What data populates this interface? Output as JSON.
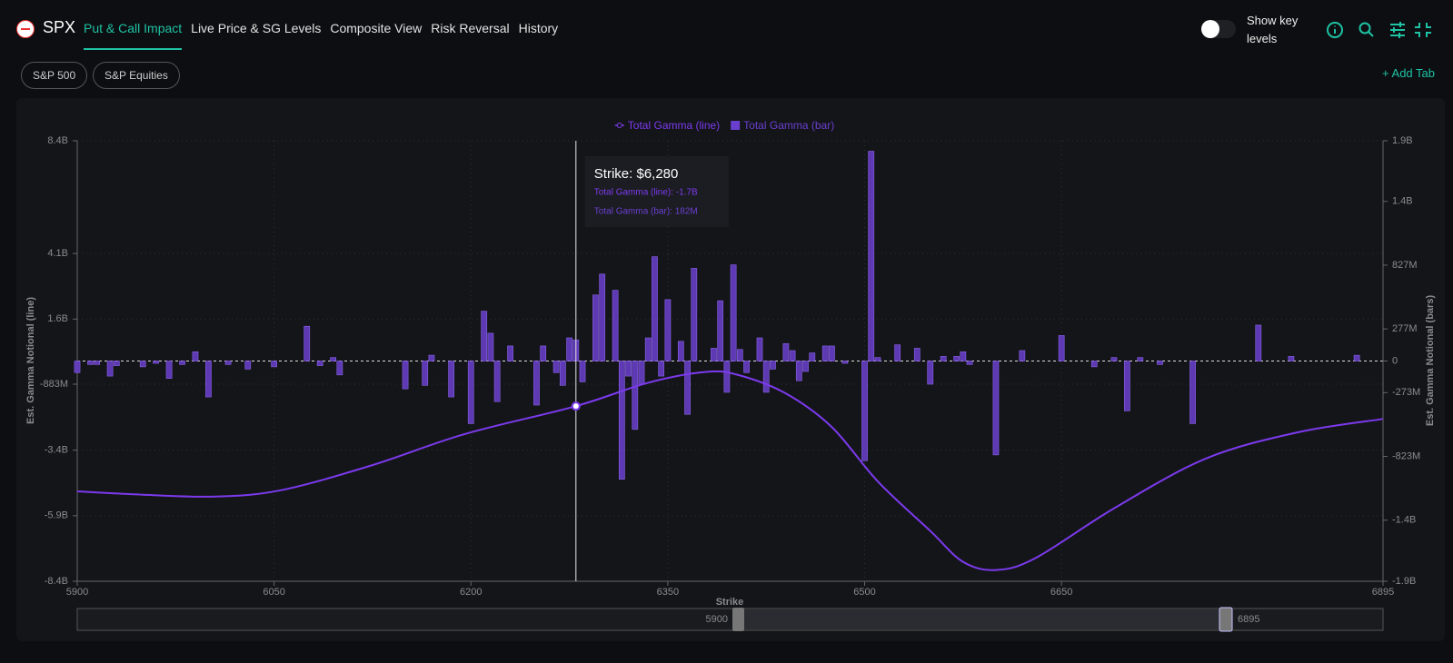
{
  "header": {
    "symbol": "SPX",
    "tabs": [
      "Put & Call Impact",
      "Live Price & SG Levels",
      "Composite View",
      "Risk Reversal",
      "History"
    ],
    "toggle_label": "Show key levels",
    "subtabs": [
      "S&P 500",
      "S&P Equities"
    ],
    "add_tab": "+ Add Tab"
  },
  "chart_data": {
    "type": "combo",
    "x_label": "Strike",
    "y_label": "Est. Gamma Notional (line)",
    "y2_label": "Est. Gamma Notional (bars)",
    "xlim": [
      5900,
      6895
    ],
    "xticks": [
      5900,
      6050,
      6200,
      6350,
      6500,
      6650,
      6895
    ],
    "ylim": [
      -8.4,
      8.4
    ],
    "yticks": [
      {
        "value": 8.4,
        "label": "8.4B"
      },
      {
        "value": 4.1,
        "label": "4.1B"
      },
      {
        "value": 1.6,
        "label": "1.6B"
      },
      {
        "value": -0.883,
        "label": "-883M"
      },
      {
        "value": -3.4,
        "label": "-3.4B"
      },
      {
        "value": -5.9,
        "label": "-5.9B"
      },
      {
        "value": -8.4,
        "label": "-8.4B"
      }
    ],
    "y2lim": [
      -1.9,
      1.9
    ],
    "y2ticks": [
      {
        "value": 1.9,
        "label": "1.9B"
      },
      {
        "value": 1.377,
        "label": "1.4B"
      },
      {
        "value": 0.827,
        "label": "827M"
      },
      {
        "value": 0.277,
        "label": "277M"
      },
      0,
      {
        "value": -0.273,
        "label": "-273M"
      },
      {
        "value": -0.823,
        "label": "-823M"
      },
      {
        "value": -1.373,
        "label": "-1.4B"
      },
      {
        "value": -1.9,
        "label": "-1.9B"
      }
    ],
    "grid": true,
    "series": [
      {
        "name": "Total Gamma (line)",
        "kind": "line",
        "axis": "y",
        "color": "#7c3aed",
        "x": [
          5900,
          5950,
          6005,
          6055,
          6125,
          6195,
          6280,
          6335,
          6380,
          6405,
          6440,
          6475,
          6510,
          6550,
          6575,
          6600,
          6630,
          6690,
          6760,
          6830,
          6895
        ],
        "values": [
          -4.97,
          -5.1,
          -5.17,
          -4.93,
          -3.97,
          -2.79,
          -1.72,
          -0.83,
          -0.41,
          -0.55,
          -1.24,
          -2.52,
          -4.59,
          -6.48,
          -7.66,
          -7.97,
          -7.52,
          -5.62,
          -3.72,
          -2.72,
          -2.21
        ]
      },
      {
        "name": "Total Gamma (bar)",
        "kind": "bar",
        "axis": "y2",
        "color": "#6a3fcf",
        "x": [
          5900,
          5910,
          5915,
          5925,
          5930,
          5950,
          5960,
          5970,
          5980,
          5990,
          6000,
          6015,
          6030,
          6050,
          6075,
          6085,
          6095,
          6100,
          6150,
          6165,
          6170,
          6185,
          6200,
          6210,
          6215,
          6220,
          6230,
          6250,
          6255,
          6265,
          6270,
          6275,
          6280,
          6285,
          6295,
          6300,
          6310,
          6315,
          6320,
          6325,
          6330,
          6335,
          6340,
          6345,
          6350,
          6360,
          6365,
          6370,
          6385,
          6390,
          6395,
          6400,
          6405,
          6410,
          6420,
          6425,
          6430,
          6440,
          6445,
          6450,
          6455,
          6460,
          6470,
          6475,
          6485,
          6500,
          6505,
          6510,
          6525,
          6540,
          6550,
          6560,
          6570,
          6575,
          6580,
          6600,
          6620,
          6650,
          6675,
          6690,
          6700,
          6710,
          6725,
          6750,
          6800,
          6825,
          6875
        ],
        "values": [
          -0.1,
          -0.03,
          -0.03,
          -0.13,
          -0.04,
          -0.05,
          -0.02,
          -0.15,
          -0.03,
          0.08,
          -0.31,
          -0.03,
          -0.07,
          -0.05,
          0.3,
          -0.04,
          0.03,
          -0.12,
          -0.24,
          -0.21,
          0.05,
          -0.31,
          -0.54,
          0.43,
          0.24,
          -0.35,
          0.13,
          -0.38,
          0.13,
          -0.1,
          -0.21,
          0.2,
          0.182,
          -0.18,
          0.57,
          0.75,
          0.61,
          -1.02,
          -0.13,
          -0.59,
          -0.2,
          0.2,
          0.9,
          -0.13,
          0.53,
          0.17,
          -0.46,
          0.8,
          0.11,
          0.52,
          -0.27,
          0.83,
          0.1,
          -0.1,
          0.2,
          -0.27,
          -0.07,
          0.15,
          0.09,
          -0.17,
          -0.09,
          0.07,
          0.13,
          0.13,
          -0.02,
          -0.86,
          1.81,
          0.03,
          0.14,
          0.11,
          -0.2,
          0.04,
          0.04,
          0.08,
          -0.03,
          -0.81,
          0.09,
          0.22,
          -0.05,
          0.03,
          -0.43,
          0.03,
          -0.03,
          -0.54,
          0.31,
          0.04,
          0.05
        ]
      }
    ],
    "crosshair": 6280,
    "tooltip": {
      "title": "Strike: $6,280",
      "lines": [
        "Total Gamma (line): -1.7B",
        "Total Gamma (bar): 182M"
      ]
    }
  }
}
